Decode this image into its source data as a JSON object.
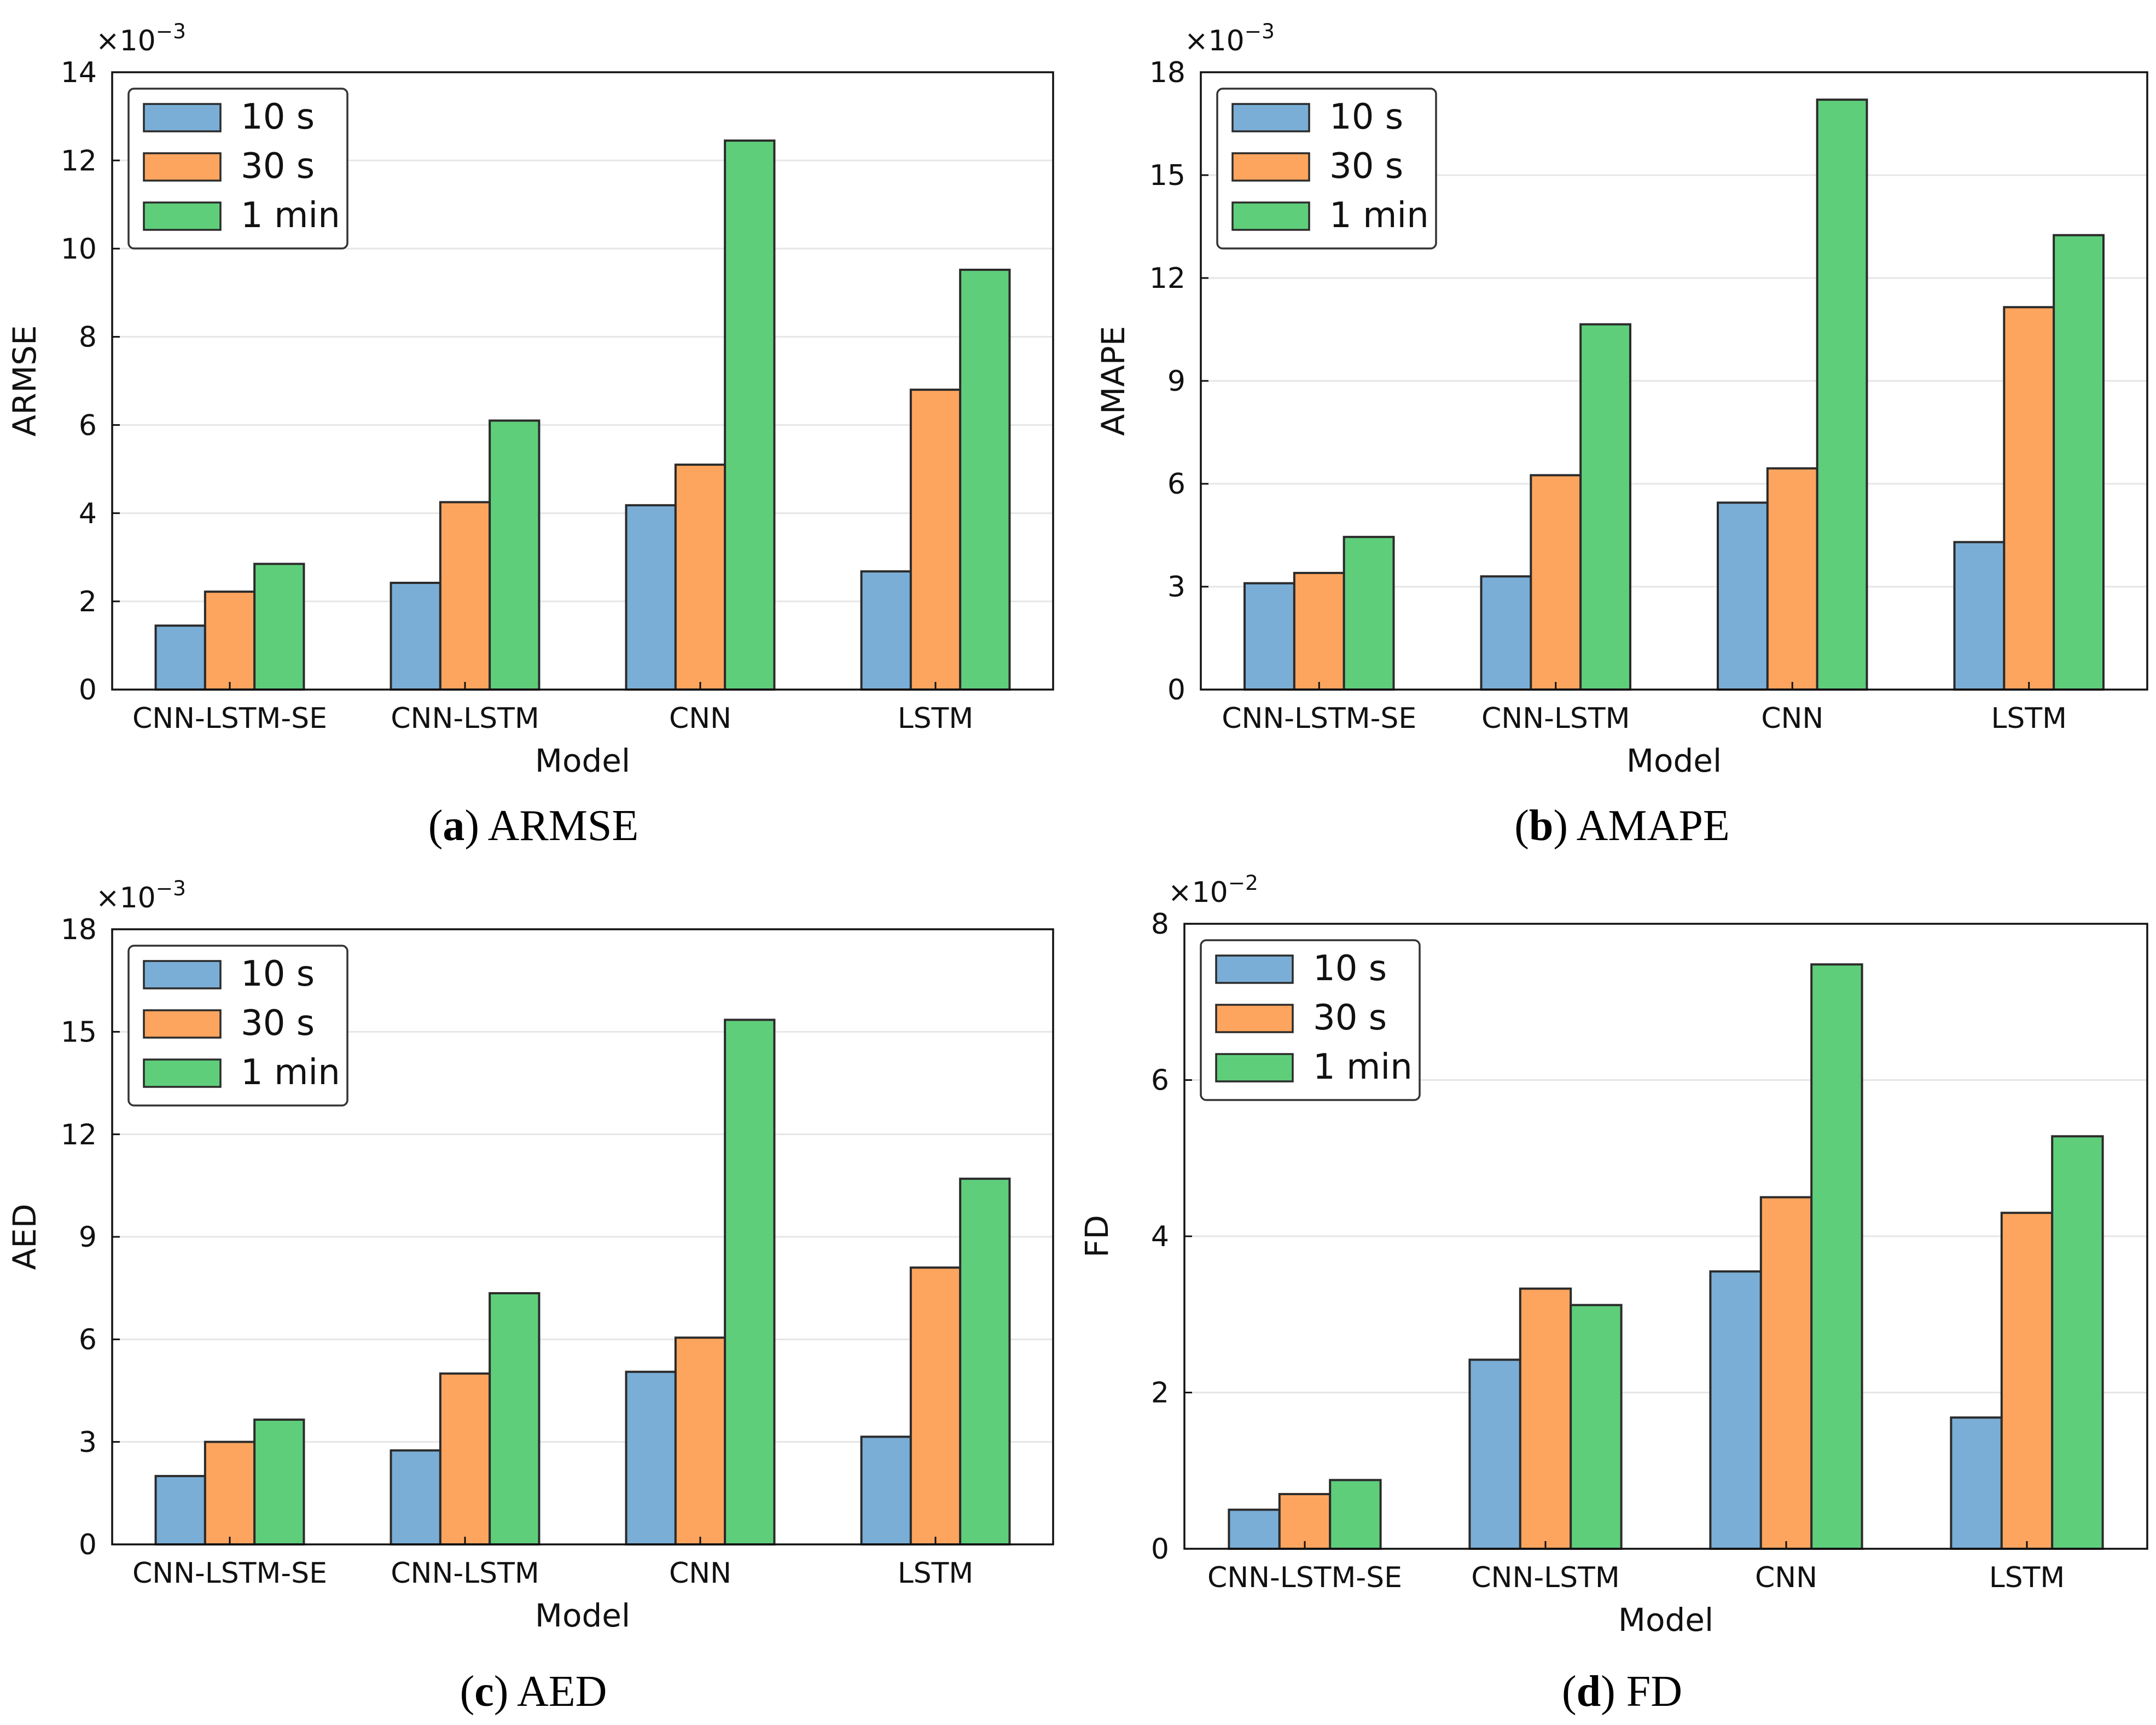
{
  "figure": {
    "panels": [
      {
        "id": "a",
        "caption_label": "a",
        "caption_text": "ARMSE"
      },
      {
        "id": "b",
        "caption_label": "b",
        "caption_text": "AMAPE"
      },
      {
        "id": "c",
        "caption_label": "c",
        "caption_text": "AED"
      },
      {
        "id": "d",
        "caption_label": "d",
        "caption_text": "FD"
      }
    ]
  },
  "colors": {
    "series_10s": "#7aaed6",
    "series_30s": "#fda55e",
    "series_1min": "#5fce7b",
    "edge": "#2b2b2b",
    "grid": "#e6e6e6"
  },
  "chart_data": [
    {
      "id": "a",
      "type": "bar",
      "title": "",
      "xlabel": "Model",
      "ylabel": "ARMSE",
      "multiplier": "×10^−3",
      "multiplier_base": "×10",
      "multiplier_exp": "−3",
      "ylim": [
        0,
        14
      ],
      "yticks": [
        0,
        2,
        4,
        6,
        8,
        10,
        12,
        14
      ],
      "categories": [
        "CNN-LSTM-SE",
        "CNN-LSTM",
        "CNN",
        "LSTM"
      ],
      "legend_position": "top-left",
      "series": [
        {
          "name": "10 s",
          "values": [
            1.45,
            2.42,
            4.18,
            2.68
          ]
        },
        {
          "name": "30 s",
          "values": [
            2.22,
            4.25,
            5.1,
            6.8
          ]
        },
        {
          "name": "1 min",
          "values": [
            2.85,
            6.1,
            12.45,
            9.52
          ]
        }
      ]
    },
    {
      "id": "b",
      "type": "bar",
      "title": "",
      "xlabel": "Model",
      "ylabel": "AMAPE",
      "multiplier": "×10^−3",
      "multiplier_base": "×10",
      "multiplier_exp": "−3",
      "ylim": [
        0,
        18
      ],
      "yticks": [
        0,
        3,
        6,
        9,
        12,
        15,
        18
      ],
      "categories": [
        "CNN-LSTM-SE",
        "CNN-LSTM",
        "CNN",
        "LSTM"
      ],
      "legend_position": "top-left",
      "series": [
        {
          "name": "10 s",
          "values": [
            3.1,
            3.3,
            5.45,
            4.3
          ]
        },
        {
          "name": "30 s",
          "values": [
            3.4,
            6.25,
            6.45,
            11.15
          ]
        },
        {
          "name": "1 min",
          "values": [
            4.45,
            10.65,
            17.2,
            13.25
          ]
        }
      ]
    },
    {
      "id": "c",
      "type": "bar",
      "title": "",
      "xlabel": "Model",
      "ylabel": "AED",
      "multiplier": "×10^−3",
      "multiplier_base": "×10",
      "multiplier_exp": "−3",
      "ylim": [
        0,
        18
      ],
      "yticks": [
        0,
        3,
        6,
        9,
        12,
        15,
        18
      ],
      "categories": [
        "CNN-LSTM-SE",
        "CNN-LSTM",
        "CNN",
        "LSTM"
      ],
      "legend_position": "top-left",
      "series": [
        {
          "name": "10 s",
          "values": [
            2.0,
            2.75,
            5.05,
            3.15
          ]
        },
        {
          "name": "30 s",
          "values": [
            3.0,
            5.0,
            6.05,
            8.1
          ]
        },
        {
          "name": "1 min",
          "values": [
            3.65,
            7.35,
            15.35,
            10.7
          ]
        }
      ]
    },
    {
      "id": "d",
      "type": "bar",
      "title": "",
      "xlabel": "Model",
      "ylabel": "FD",
      "multiplier": "×10^−2",
      "multiplier_base": "×10",
      "multiplier_exp": "−2",
      "ylim": [
        0,
        8
      ],
      "yticks": [
        0,
        2,
        4,
        6,
        8
      ],
      "categories": [
        "CNN-LSTM-SE",
        "CNN-LSTM",
        "CNN",
        "LSTM"
      ],
      "legend_position": "top-left",
      "series": [
        {
          "name": "10 s",
          "values": [
            0.5,
            2.42,
            3.55,
            1.68
          ]
        },
        {
          "name": "30 s",
          "values": [
            0.7,
            3.33,
            4.5,
            4.3
          ]
        },
        {
          "name": "1 min",
          "values": [
            0.88,
            3.12,
            7.48,
            5.28
          ]
        }
      ]
    }
  ]
}
